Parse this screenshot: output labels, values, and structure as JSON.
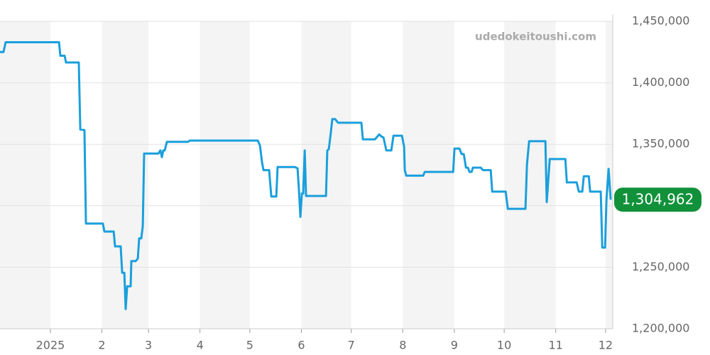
{
  "chart_data": {
    "type": "line",
    "watermark": "udedokeitoushi.com",
    "x": [
      0.7,
      2.8,
      4.1,
      36.2,
      37.0,
      39.6,
      40.4,
      48.1,
      49.0,
      51.5,
      52.4,
      62.6,
      63.5,
      69.1,
      69.9,
      73.3,
      74.2,
      75.5,
      76.3,
      77.2,
      79.3,
      79.7,
      82.3,
      83.6,
      84.4,
      85.7,
      86.6,
      87.4,
      96.0,
      97.2,
      98.1,
      98.9,
      99.8,
      101.1,
      113.9,
      114.8,
      155.8,
      157.1,
      158.3,
      159.2,
      162.6,
      163.9,
      166.9,
      167.7,
      178.0,
      179.7,
      180.6,
      181.4,
      182.3,
      183.1,
      184.0,
      184.8,
      196.8,
      197.6,
      198.5,
      199.8,
      200.6,
      202.3,
      204.1,
      218.1,
      219.0,
      226.3,
      228.8,
      230.5,
      231.4,
      233.1,
      236.1,
      237.4,
      242.5,
      243.8,
      244.2,
      245.1,
      255.3,
      256.2,
      273.3,
      274.1,
      277.1,
      278.4,
      279.7,
      281.0,
      282.2,
      283.1,
      284.4,
      285.2,
      289.9,
      291.2,
      295.9,
      296.8,
      304.9,
      306.2,
      316.8,
      317.7,
      319.0,
      328.8,
      329.6,
      331.4,
      340.8,
      341.7,
      347.6,
      348.9,
      351.0,
      351.9,
      354.9,
      355.7,
      362.1,
      363.0,
      364.7,
      365.5,
      366.8,
      368.1
    ],
    "series": [
      {
        "color": "#1a9fdc",
        "values": [
          1425000,
          1425000,
          1433000,
          1433000,
          1422000,
          1422000,
          1416500,
          1416500,
          1362000,
          1361500,
          1285500,
          1285500,
          1279000,
          1279000,
          1267000,
          1267000,
          1245500,
          1245500,
          1216000,
          1234500,
          1234500,
          1255000,
          1255000,
          1257000,
          1273500,
          1273500,
          1283500,
          1342500,
          1342500,
          1345000,
          1339500,
          1345000,
          1345000,
          1352000,
          1352000,
          1353000,
          1353000,
          1349000,
          1335500,
          1329000,
          1329000,
          1307500,
          1307500,
          1331500,
          1331500,
          1330500,
          1311500,
          1291000,
          1310000,
          1310000,
          1345000,
          1308000,
          1308000,
          1345000,
          1346000,
          1360500,
          1370500,
          1370500,
          1367500,
          1367500,
          1354000,
          1354000,
          1358000,
          1356000,
          1355500,
          1345000,
          1345000,
          1357000,
          1357000,
          1348000,
          1329000,
          1324500,
          1324500,
          1327500,
          1327500,
          1346500,
          1346500,
          1342000,
          1342000,
          1331000,
          1331000,
          1327500,
          1327500,
          1331000,
          1331000,
          1329000,
          1329000,
          1311500,
          1311500,
          1297500,
          1297500,
          1333500,
          1352500,
          1352500,
          1303000,
          1338000,
          1338000,
          1319000,
          1319000,
          1311500,
          1311500,
          1324000,
          1324000,
          1311500,
          1311500,
          1266000,
          1266000,
          1304000,
          1330000,
          1304962
        ]
      }
    ],
    "current_value": {
      "value": 1304962,
      "label": "1,304,962",
      "color": "#11913a"
    },
    "xlim": [
      0.7,
      369.3
    ],
    "xticks": [
      {
        "value": 31,
        "label": "2025"
      },
      {
        "value": 62,
        "label": "2"
      },
      {
        "value": 90,
        "label": "3"
      },
      {
        "value": 121,
        "label": "4"
      },
      {
        "value": 151,
        "label": "5"
      },
      {
        "value": 182,
        "label": "6"
      },
      {
        "value": 212,
        "label": "7"
      },
      {
        "value": 243,
        "label": "8"
      },
      {
        "value": 274,
        "label": "9"
      },
      {
        "value": 304,
        "label": "10"
      },
      {
        "value": 335,
        "label": "11"
      },
      {
        "value": 365,
        "label": "12"
      }
    ],
    "ylim": [
      1200000,
      1450000
    ],
    "yticks": [
      {
        "value": 1200000,
        "label": "1,200,000"
      },
      {
        "value": 1250000,
        "label": "1,250,000"
      },
      {
        "value": 1300000,
        "label": "1,300,000"
      },
      {
        "value": 1350000,
        "label": "1,350,000"
      },
      {
        "value": 1400000,
        "label": "1,400,000"
      },
      {
        "value": 1450000,
        "label": "1,450,000"
      }
    ],
    "grid": true
  }
}
